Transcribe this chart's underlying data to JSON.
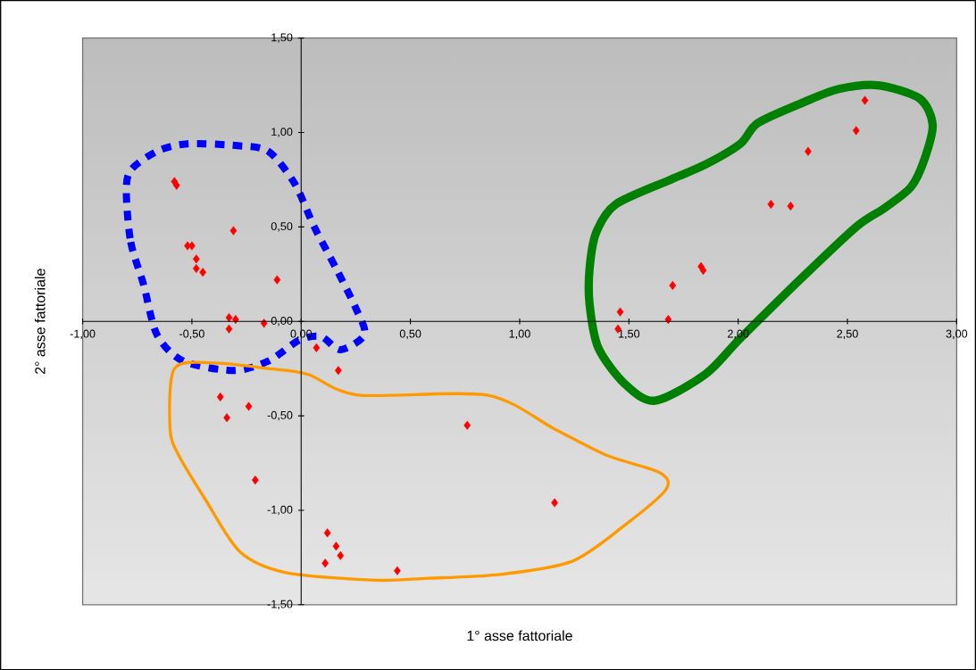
{
  "chart_data": {
    "type": "scatter",
    "xlabel": "1° asse fattoriale",
    "ylabel": "2° asse fattoriale",
    "x": [
      -0.58,
      -0.57,
      -0.31,
      -0.52,
      -0.5,
      -0.48,
      -0.48,
      -0.45,
      -0.11,
      -0.33,
      -0.3,
      -0.33,
      -0.17,
      0.07,
      0.17,
      -0.37,
      -0.24,
      -0.34,
      -0.21,
      0.76,
      1.16,
      0.12,
      0.16,
      0.18,
      0.11,
      0.44,
      2.58,
      2.54,
      2.32,
      2.15,
      2.24,
      1.83,
      1.84,
      1.7,
      1.46,
      1.68,
      1.45
    ],
    "series": [
      {
        "color": "#ff0000",
        "values": [
          0.74,
          0.72,
          0.48,
          0.4,
          0.4,
          0.33,
          0.28,
          0.26,
          0.22,
          0.02,
          0.01,
          -0.04,
          -0.01,
          -0.14,
          -0.26,
          -0.4,
          -0.45,
          -0.51,
          -0.84,
          -0.55,
          -0.96,
          -1.12,
          -1.19,
          -1.24,
          -1.28,
          -1.32,
          1.17,
          1.01,
          0.9,
          0.62,
          0.61,
          0.29,
          0.27,
          0.19,
          0.05,
          0.01,
          -0.04
        ]
      }
    ],
    "marker": "diamond",
    "xlim": [
      -1,
      3
    ],
    "ylim": [
      -1.5,
      1.5
    ],
    "xticks": [
      {
        "value": -1,
        "label": "-1,00"
      },
      {
        "value": -0.5,
        "label": "-0,50"
      },
      {
        "value": 0,
        "label": "0,00"
      },
      {
        "value": 0.5,
        "label": "0,50"
      },
      {
        "value": 1,
        "label": "1,00"
      },
      {
        "value": 1.5,
        "label": "1,50"
      },
      {
        "value": 2,
        "label": "2,00"
      },
      {
        "value": 2.5,
        "label": "2,50"
      },
      {
        "value": 3,
        "label": "3,00"
      }
    ],
    "yticks": [
      {
        "value": -1.5,
        "label": "-1,50"
      },
      {
        "value": -1,
        "label": "-1,00"
      },
      {
        "value": -0.5,
        "label": "-0,50"
      },
      {
        "value": 0,
        "label": "0,00"
      },
      {
        "value": 0.5,
        "label": "0,50"
      },
      {
        "value": 1,
        "label": "1,00"
      },
      {
        "value": 1.5,
        "label": "1,50"
      }
    ]
  }
}
